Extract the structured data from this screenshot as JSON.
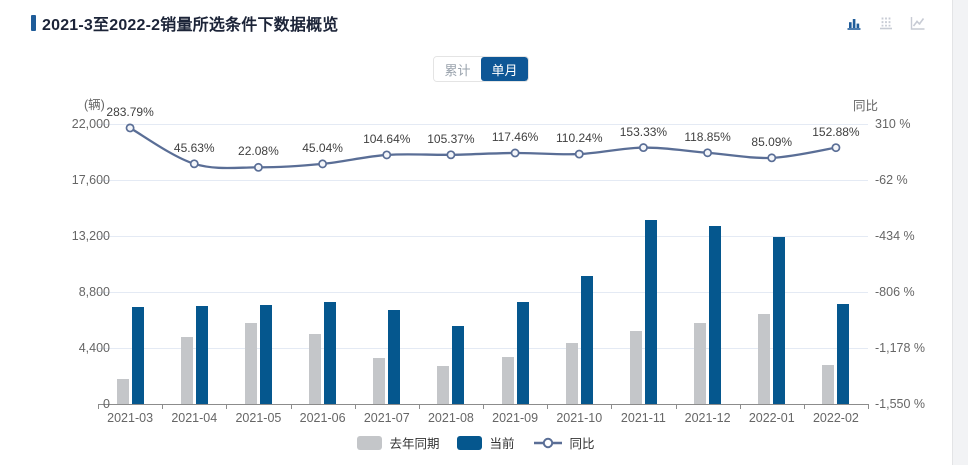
{
  "header": {
    "title": "2021-3至2022-2销量所选条件下数据概览",
    "accent_color": "#1f5c99",
    "icons": [
      {
        "name": "bar-chart-icon",
        "active": true,
        "color": "#1f5c99"
      },
      {
        "name": "dotted-bar-chart-icon",
        "active": false,
        "color": "#c7cbd4"
      },
      {
        "name": "line-chart-icon",
        "active": false,
        "color": "#c7cbd4"
      }
    ]
  },
  "toggle": {
    "options": [
      {
        "label": "累计",
        "active": false
      },
      {
        "label": "单月",
        "active": true
      }
    ],
    "active_bg": "#0e5796"
  },
  "chart_data": {
    "type": "bar",
    "subtype": "grouped-bars-with-yoy-line",
    "title": "2021-3至2022-2销量所选条件下数据概览",
    "categories": [
      "2021-03",
      "2021-04",
      "2021-05",
      "2021-06",
      "2021-07",
      "2021-08",
      "2021-09",
      "2021-10",
      "2021-11",
      "2021-12",
      "2022-01",
      "2022-02"
    ],
    "series": [
      {
        "name": "去年同期",
        "type": "bar",
        "yaxis": "left",
        "color": "#c4c6c9",
        "values": [
          1980,
          5300,
          6400,
          5500,
          3600,
          3000,
          3700,
          4800,
          5700,
          6400,
          7100,
          3100
        ]
      },
      {
        "name": "当前",
        "type": "bar",
        "yaxis": "left",
        "color": "#05578e",
        "values": [
          7600,
          7720,
          7810,
          7980,
          7370,
          6160,
          8040,
          10090,
          14440,
          14010,
          13140,
          7840
        ]
      },
      {
        "name": "同比",
        "type": "line",
        "yaxis": "right",
        "color": "#5a6e96",
        "values": [
          283.79,
          45.63,
          22.08,
          45.04,
          104.64,
          105.37,
          117.46,
          110.24,
          153.33,
          118.85,
          85.09,
          152.88
        ],
        "labels": [
          "283.79%",
          "45.63%",
          "22.08%",
          "45.04%",
          "104.64%",
          "105.37%",
          "117.46%",
          "110.24%",
          "153.33%",
          "118.85%",
          "85.09%",
          "152.88%"
        ]
      }
    ],
    "left_axis": {
      "unit": "(辆)",
      "min": 0,
      "max": 22000,
      "ticks": [
        "22,000",
        "17,600",
        "13,200",
        "8,800",
        "4,400",
        "0"
      ]
    },
    "right_axis": {
      "unit": "同比",
      "min": -1550,
      "max": 310,
      "ticks": [
        "310 %",
        "-62 %",
        "-434 %",
        "-806 %",
        "-1,178 %",
        "-1,550 %"
      ]
    },
    "legend": [
      {
        "label": "去年同期",
        "type": "bar",
        "color": "#c4c6c9"
      },
      {
        "label": "当前",
        "type": "bar",
        "color": "#05578e"
      },
      {
        "label": "同比",
        "type": "line",
        "color": "#5a6e96"
      }
    ],
    "grid": true,
    "legend_position": "bottom"
  }
}
